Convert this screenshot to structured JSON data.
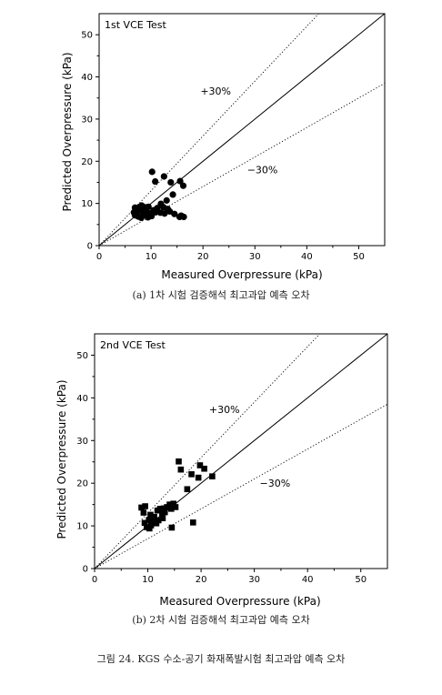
{
  "chart_data": [
    {
      "type": "scatter",
      "title": "1st VCE Test",
      "xlabel": "Measured Overpressure (kPa)",
      "ylabel": "Predicted Overpressure (kPa)",
      "xlim": [
        0,
        55
      ],
      "ylim": [
        0,
        55
      ],
      "xticks": [
        0,
        10,
        20,
        30,
        40,
        50
      ],
      "yticks": [
        0,
        10,
        20,
        30,
        40,
        50
      ],
      "marker": "circle",
      "annotations": {
        "plus": "+30%",
        "minus": "−30%"
      },
      "lines": [
        {
          "label": "",
          "slope": 1.0,
          "style": "solid"
        },
        {
          "label": "+30%",
          "slope": 1.3,
          "style": "dotted"
        },
        {
          "label": "−30%",
          "slope": 0.7,
          "style": "dotted"
        }
      ],
      "points": [
        [
          10.2,
          17.5
        ],
        [
          12.5,
          16.4
        ],
        [
          15.6,
          15.3
        ],
        [
          10.8,
          15.2
        ],
        [
          13.8,
          15.0
        ],
        [
          16.2,
          14.2
        ],
        [
          14.2,
          12.1
        ],
        [
          13.0,
          10.7
        ],
        [
          11.9,
          9.9
        ],
        [
          6.9,
          9.0
        ],
        [
          7.2,
          8.8
        ],
        [
          7.8,
          9.2
        ],
        [
          8.2,
          9.5
        ],
        [
          8.9,
          9.1
        ],
        [
          9.5,
          9.2
        ],
        [
          10.5,
          8.4
        ],
        [
          11.2,
          8.9
        ],
        [
          12.4,
          9.1
        ],
        [
          13.2,
          8.7
        ],
        [
          6.7,
          7.9
        ],
        [
          7.4,
          8.1
        ],
        [
          8.0,
          8.4
        ],
        [
          8.5,
          7.8
        ],
        [
          9.0,
          8.0
        ],
        [
          9.8,
          7.7
        ],
        [
          10.9,
          7.9
        ],
        [
          11.8,
          7.8
        ],
        [
          12.6,
          7.6
        ],
        [
          13.6,
          8.1
        ],
        [
          14.5,
          7.5
        ],
        [
          6.9,
          7.2
        ],
        [
          7.5,
          6.9
        ],
        [
          8.1,
          6.6
        ],
        [
          8.6,
          7.2
        ],
        [
          9.4,
          6.7
        ],
        [
          10.1,
          7.0
        ],
        [
          15.8,
          7.1
        ],
        [
          16.3,
          6.8
        ],
        [
          15.5,
          6.8
        ]
      ]
    },
    {
      "type": "scatter",
      "title": "2nd VCE Test",
      "xlabel": "Measured Overpressure (kPa)",
      "ylabel": "Predicted Overpressure (kPa)",
      "xlim": [
        0,
        55
      ],
      "ylim": [
        0,
        55
      ],
      "xticks": [
        0,
        10,
        20,
        30,
        40,
        50
      ],
      "yticks": [
        0,
        10,
        20,
        30,
        40,
        50
      ],
      "marker": "square",
      "annotations": {
        "plus": "+30%",
        "minus": "−30%"
      },
      "lines": [
        {
          "label": "",
          "slope": 1.0,
          "style": "solid"
        },
        {
          "label": "+30%",
          "slope": 1.3,
          "style": "dotted"
        },
        {
          "label": "−30%",
          "slope": 0.7,
          "style": "dotted"
        }
      ],
      "points": [
        [
          15.8,
          25.1
        ],
        [
          19.8,
          24.2
        ],
        [
          20.6,
          23.4
        ],
        [
          16.2,
          23.2
        ],
        [
          18.2,
          22.1
        ],
        [
          22.1,
          21.6
        ],
        [
          19.5,
          21.3
        ],
        [
          17.4,
          18.6
        ],
        [
          8.8,
          14.3
        ],
        [
          9.2,
          13.1
        ],
        [
          9.5,
          14.6
        ],
        [
          11.8,
          13.6
        ],
        [
          12.3,
          14.0
        ],
        [
          13.0,
          14.1
        ],
        [
          14.1,
          15.0
        ],
        [
          14.8,
          15.2
        ],
        [
          15.2,
          14.4
        ],
        [
          13.6,
          14.4
        ],
        [
          14.4,
          14.0
        ],
        [
          12.7,
          12.9
        ],
        [
          13.2,
          13.2
        ],
        [
          10.5,
          12.6
        ],
        [
          11.2,
          12.1
        ],
        [
          12.0,
          11.3
        ],
        [
          12.8,
          11.8
        ],
        [
          9.4,
          10.7
        ],
        [
          10.2,
          11.4
        ],
        [
          10.9,
          10.9
        ],
        [
          11.6,
          10.6
        ],
        [
          9.8,
          9.7
        ],
        [
          10.3,
          9.4
        ],
        [
          10.6,
          10.1
        ],
        [
          14.5,
          9.6
        ],
        [
          18.5,
          10.8
        ]
      ]
    }
  ],
  "captions": {
    "a": "(a) 1차 시험 검증해석 최고과압 예측 오차",
    "b": "(b) 2차 시험 검증해석 최고과압 예측 오차",
    "figure": "그림 24. KGS 수소-공기 화재폭발시험 최고과압 예측 오차"
  }
}
